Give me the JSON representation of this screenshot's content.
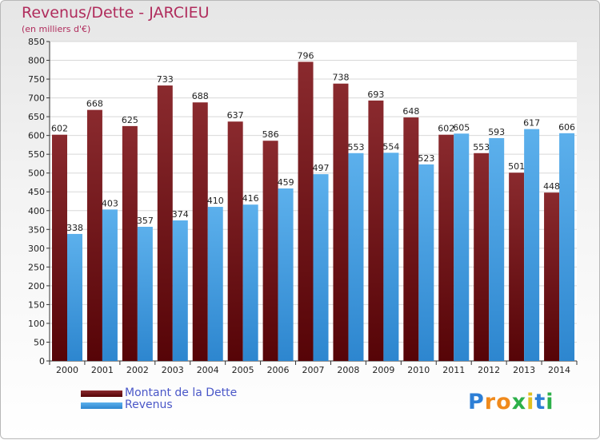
{
  "title": "Revenus/Dette - JARCIEU",
  "subtitle": "(en milliers d'€)",
  "legend": [
    {
      "label": "Montant de la Dette",
      "color": "#6b1217"
    },
    {
      "label": "Revenus",
      "color": "#4fa3e6"
    }
  ],
  "logo": {
    "text": "Proxiti",
    "letters": [
      "P",
      "r",
      "o",
      "x",
      "i",
      "t",
      "i"
    ],
    "colors": [
      "#2d7fd6",
      "#f08a1c",
      "#f08a1c",
      "#2db04a",
      "#e0c020",
      "#2d7fd6",
      "#2db04a"
    ]
  },
  "chart_data": {
    "type": "bar",
    "categories": [
      "2000",
      "2001",
      "2002",
      "2003",
      "2004",
      "2005",
      "2006",
      "2007",
      "2008",
      "2009",
      "2010",
      "2011",
      "2012",
      "2013",
      "2014"
    ],
    "series": [
      {
        "name": "Montant de la Dette",
        "color": "#6b1217",
        "values": [
          602,
          668,
          625,
          733,
          688,
          637,
          586,
          796,
          738,
          693,
          648,
          602,
          553,
          501,
          448
        ]
      },
      {
        "name": "Revenus",
        "color": "#4fa3e6",
        "values": [
          338,
          403,
          357,
          374,
          410,
          416,
          459,
          497,
          553,
          554,
          523,
          605,
          593,
          617,
          606
        ]
      }
    ],
    "ylim": [
      0,
      850
    ],
    "yticks": [
      0,
      50,
      100,
      150,
      200,
      250,
      300,
      350,
      400,
      450,
      500,
      550,
      600,
      650,
      700,
      750,
      800,
      850
    ],
    "grid": true,
    "legend_position": "bottom-left"
  }
}
